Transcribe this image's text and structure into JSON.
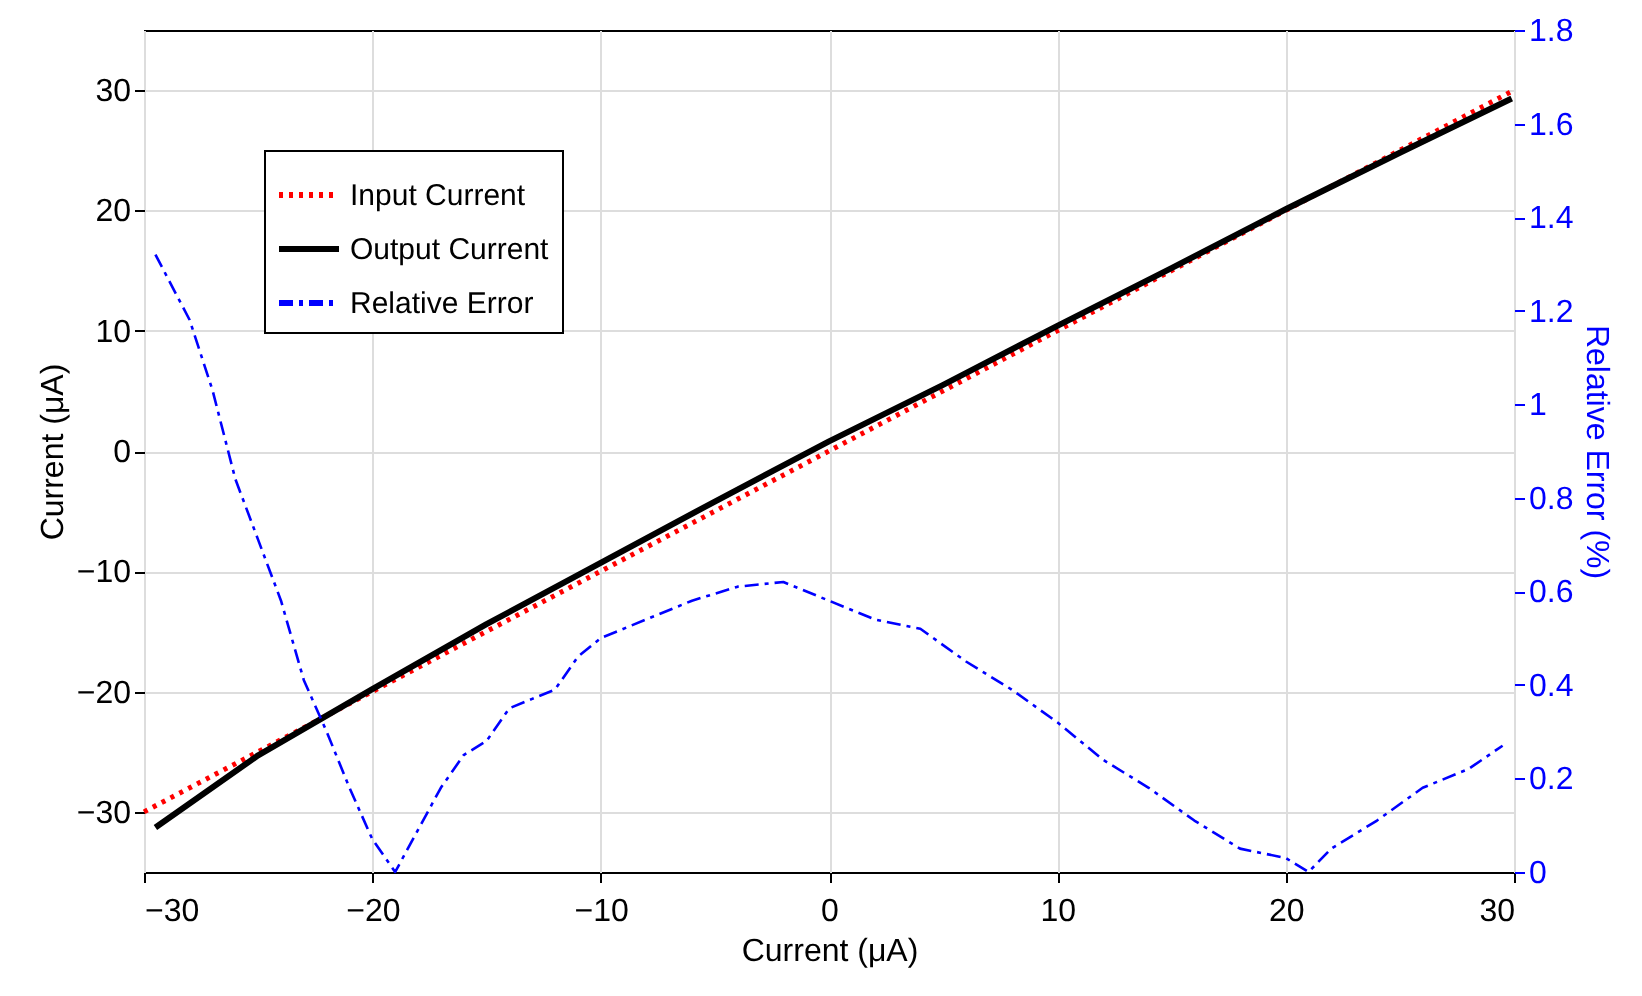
{
  "chart_data": {
    "type": "line",
    "xlabel": "Current (μA)",
    "ylabel": "Current (μA)",
    "y2label": "Relative Error (%)",
    "xlim": [
      -30,
      30
    ],
    "xticks": [
      -30,
      -20,
      -10,
      0,
      10,
      20,
      30
    ],
    "ylim": [
      -35,
      35
    ],
    "yticks": [
      -30,
      -20,
      -10,
      0,
      10,
      20,
      30
    ],
    "y2lim": [
      0,
      1.8
    ],
    "y2ticks": [
      0,
      0.2,
      0.4,
      0.6,
      0.8,
      1,
      1.2,
      1.4,
      1.6,
      1.8
    ],
    "grid": true,
    "legend": "top left",
    "marker": "none",
    "series": [
      {
        "name": "Input Current",
        "color": "#ff0000",
        "line_style": "dotted",
        "x": [
          -30,
          30
        ],
        "values": [
          -30,
          30
        ]
      },
      {
        "name": "Output Current",
        "color": "#000000",
        "line_style": "solid",
        "x": [
          -29.5,
          -25,
          -20,
          -15,
          -10,
          -5,
          0,
          5,
          10,
          15,
          20,
          25,
          29.9
        ],
        "values": [
          -31.3,
          -25.3,
          -19.8,
          -14.4,
          -9.3,
          -4.2,
          0.8,
          5.5,
          10.4,
          15.2,
          20.1,
          24.8,
          29.3
        ]
      },
      {
        "name": "Relative Error",
        "color": "#0000ff",
        "line_style": "dashed",
        "axis": "y2",
        "x": [
          -29.5,
          -28,
          -27,
          -26,
          -25,
          -24,
          -23,
          -22,
          -21,
          -20,
          -19,
          -18,
          -17,
          -16,
          -15,
          -14,
          -13,
          -12,
          -11,
          -10,
          -8,
          -6,
          -4,
          -2,
          0,
          2,
          4,
          6,
          8,
          10,
          12,
          14,
          16,
          18,
          20,
          21,
          22,
          24,
          26,
          28,
          29.5
        ],
        "values": [
          1.32,
          1.18,
          1.03,
          0.84,
          0.71,
          0.58,
          0.41,
          0.3,
          0.18,
          0.07,
          0,
          0.09,
          0.18,
          0.25,
          0.28,
          0.35,
          0.37,
          0.39,
          0.46,
          0.5,
          0.54,
          0.58,
          0.61,
          0.62,
          0.58,
          0.54,
          0.52,
          0.45,
          0.39,
          0.32,
          0.24,
          0.18,
          0.11,
          0.05,
          0.03,
          0,
          0.05,
          0.11,
          0.18,
          0.22,
          0.27
        ]
      }
    ]
  }
}
